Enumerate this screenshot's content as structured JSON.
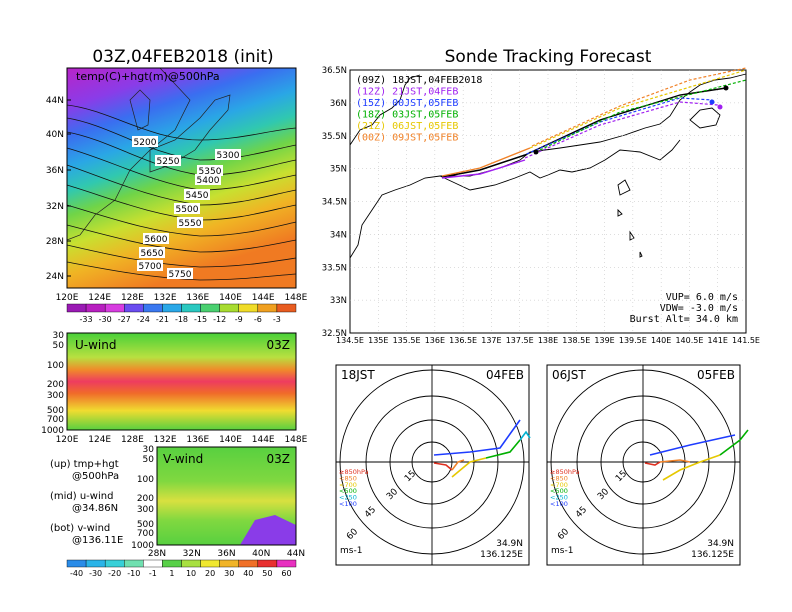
{
  "left_map": {
    "title": "03Z,04FEB2018 (init)",
    "subtitle": "temp(C)+hgt(m)@500hPa",
    "lat_labels": [
      "44N",
      "40N",
      "36N",
      "32N",
      "28N",
      "24N"
    ],
    "lon_labels": [
      "120E",
      "124E",
      "128E",
      "132E",
      "136E",
      "140E",
      "144E",
      "148E"
    ],
    "contour_labels": [
      "5200",
      "5250",
      "5300",
      "5350",
      "5400",
      "5450",
      "5500",
      "5550",
      "5600",
      "5650",
      "5700",
      "5750"
    ],
    "colorbar_labels": [
      "-33",
      "-30",
      "-27",
      "-24",
      "-21",
      "-18",
      "-15",
      "-12",
      "-9",
      "-6",
      "-3"
    ]
  },
  "uwind": {
    "label": "U-wind",
    "time": "03Z",
    "y_labels": [
      "30",
      "50",
      "100",
      "200",
      "300",
      "500",
      "700",
      "1000"
    ],
    "x_labels": [
      "120E",
      "124E",
      "128E",
      "132E",
      "136E",
      "140E",
      "144E",
      "148E"
    ]
  },
  "vwind": {
    "label": "V-wind",
    "time": "03Z",
    "y_labels": [
      "30",
      "50",
      "100",
      "200",
      "300",
      "500",
      "700",
      "1000"
    ],
    "x_labels": [
      "28N",
      "32N",
      "36N",
      "40N",
      "44N"
    ]
  },
  "notes": [
    {
      "a": "(up) tmp+hgt",
      "b": "@500hPa"
    },
    {
      "a": "(mid) u-wind",
      "b": "@34.86N"
    },
    {
      "a": "(bot) v-wind",
      "b": "@136.11E"
    }
  ],
  "wind_colorbar_labels": [
    "-40",
    "-30",
    "-20",
    "-10",
    "-1",
    "1",
    "10",
    "20",
    "30",
    "40",
    "50",
    "60"
  ],
  "track": {
    "title": "Sonde Tracking Forecast",
    "legend": [
      {
        "text": "(09Z)  18JST,04FEB2018",
        "color": "#000000"
      },
      {
        "text": "(12Z)  21JST,04FEB",
        "color": "#a020f0"
      },
      {
        "text": "(15Z)  00JST,05FEB",
        "color": "#1e3cff"
      },
      {
        "text": "(18Z)  03JST,05FEB",
        "color": "#00b000"
      },
      {
        "text": "(21Z)  06JST,05FEB",
        "color": "#e6c800"
      },
      {
        "text": "(00Z)  09JST,05FEB",
        "color": "#f08228"
      }
    ],
    "lat_labels": [
      "36.5N",
      "36N",
      "35.5N",
      "35N",
      "34.5N",
      "34N",
      "33.5N",
      "33N",
      "32.5N"
    ],
    "lon_labels": [
      "134.5E",
      "135E",
      "135.5E",
      "136E",
      "136.5E",
      "137E",
      "137.5E",
      "138E",
      "138.5E",
      "139E",
      "139.5E",
      "140E",
      "140.5E",
      "141E",
      "141.5E"
    ],
    "params": [
      "VUP=  6.0 m/s",
      "VDW= -3.0 m/s",
      "Burst Alt= 34.0 km"
    ]
  },
  "hodo1": {
    "time": "18JST",
    "date": "04FEB",
    "lat": "34.9N",
    "lon": "136.125E",
    "unit": "ms-1"
  },
  "hodo2": {
    "time": "06JST",
    "date": "05FEB",
    "lat": "34.9N",
    "lon": "136.125E",
    "unit": "ms-1"
  },
  "hodo_rings": [
    "15",
    "30",
    "45",
    "60"
  ],
  "hodo_legend": [
    {
      "text": "≥850hPa",
      "color": "#e03020"
    },
    {
      "text": "<850",
      "color": "#f08228"
    },
    {
      "text": "<700",
      "color": "#e6c800"
    },
    {
      "text": "<500",
      "color": "#00b000"
    },
    {
      "text": "<250",
      "color": "#00b0d0"
    },
    {
      "text": "<100",
      "color": "#1e3cff"
    }
  ],
  "colors": {
    "temp_scale": [
      "#9a1ab4",
      "#b81fc0",
      "#d73ce0",
      "#6a4cf0",
      "#3a78f0",
      "#2aa8e8",
      "#2ac8c0",
      "#4ad070",
      "#a8dc30",
      "#f0dc28",
      "#f0a020",
      "#e85c20"
    ],
    "wind_scale": [
      "#2a8ce8",
      "#2ab4e8",
      "#38d0d8",
      "#70e0b0",
      "#ffffff",
      "#58d048",
      "#a8e040",
      "#f0e830",
      "#f0b428",
      "#f07028",
      "#e83030",
      "#e830c0"
    ]
  }
}
